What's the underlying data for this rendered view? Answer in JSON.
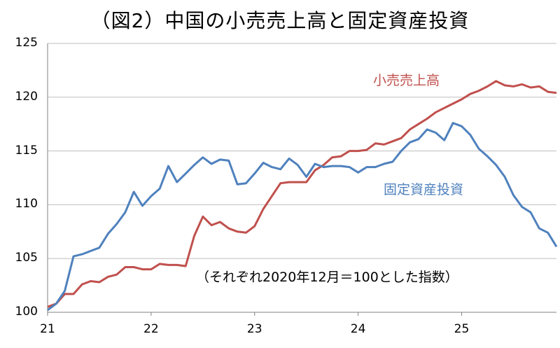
{
  "title": "（図2）中国の小売売上高と固定資産投資",
  "note": "（それぞれ2020年12月＝100とした指数）",
  "chart_data": {
    "type": "line",
    "title": "（図2）中国の小売売上高と固定資産投資",
    "subtitle": "（それぞれ2020年12月＝100とした指数）",
    "xlabel": "",
    "ylabel": "",
    "ylim": [
      100,
      125
    ],
    "yticks": [
      100,
      105,
      110,
      115,
      120,
      125
    ],
    "xtick_labels": [
      "21",
      "22",
      "23",
      "24",
      "25"
    ],
    "x_frequency": "monthly, Jan 2021 - Dec 2025",
    "grid": true,
    "legend": "inline labels",
    "series": [
      {
        "name": "小売売上高",
        "color": "#c0504d",
        "values": [
          100.5,
          100.8,
          101.7,
          101.7,
          102.6,
          102.9,
          102.8,
          103.3,
          103.5,
          104.2,
          104.2,
          104.0,
          104.0,
          104.5,
          104.4,
          104.4,
          104.3,
          107.1,
          108.9,
          108.1,
          108.4,
          107.8,
          107.5,
          107.4,
          108.0,
          109.6,
          110.8,
          112.0,
          112.1,
          112.1,
          112.1,
          113.2,
          113.7,
          114.4,
          114.5,
          115.0,
          115.0,
          115.1,
          115.7,
          115.6,
          115.9,
          116.2,
          117.0,
          117.5,
          118.0,
          118.6,
          119.0,
          119.4,
          119.8,
          120.3,
          120.6,
          121.0,
          121.5,
          121.1,
          121.0,
          121.2,
          120.9,
          121.0,
          120.5,
          120.4
        ]
      },
      {
        "name": "固定資産投資",
        "color": "#4f81bd",
        "values": [
          100.2,
          100.8,
          102.0,
          105.2,
          105.4,
          105.7,
          106.0,
          107.3,
          108.2,
          109.3,
          111.2,
          109.9,
          110.8,
          111.5,
          113.6,
          112.1,
          112.9,
          113.7,
          114.4,
          113.8,
          114.2,
          114.1,
          111.9,
          112.0,
          112.9,
          113.9,
          113.5,
          113.3,
          114.3,
          113.7,
          112.6,
          113.8,
          113.5,
          113.6,
          113.6,
          113.5,
          113.0,
          113.5,
          113.5,
          113.8,
          114.0,
          115.0,
          115.8,
          116.1,
          117.0,
          116.7,
          116.0,
          117.6,
          117.3,
          116.5,
          115.2,
          114.5,
          113.7,
          112.6,
          110.9,
          109.8,
          109.3,
          107.8,
          107.4,
          106.1
        ]
      }
    ]
  }
}
